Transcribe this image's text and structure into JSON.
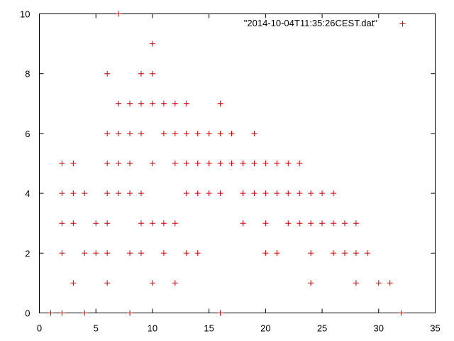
{
  "chart_data": {
    "type": "scatter",
    "title": "",
    "xlabel": "",
    "ylabel": "",
    "xlim": [
      0,
      35
    ],
    "ylim": [
      0,
      10
    ],
    "xticks": [
      "0",
      "5",
      "10",
      "15",
      "20",
      "25",
      "30",
      "35"
    ],
    "yticks": [
      "0",
      "2",
      "4",
      "6",
      "8",
      "10"
    ],
    "grid": false,
    "legend_position": "top-right",
    "marker": "plus",
    "colors": {
      "points": "#cc0000",
      "axes": "#000000",
      "background": "#ffffff"
    },
    "series": [
      {
        "name": "\"2014-10-04T11:35:26CEST.dat\"",
        "points": [
          [
            1,
            0
          ],
          [
            2,
            0
          ],
          [
            4,
            0
          ],
          [
            8,
            0
          ],
          [
            16,
            0
          ],
          [
            32,
            0
          ],
          [
            3,
            1
          ],
          [
            6,
            1
          ],
          [
            10,
            1
          ],
          [
            12,
            1
          ],
          [
            24,
            1
          ],
          [
            28,
            1
          ],
          [
            30,
            1
          ],
          [
            31,
            1
          ],
          [
            2,
            2
          ],
          [
            4,
            2
          ],
          [
            5,
            2
          ],
          [
            6,
            2
          ],
          [
            8,
            2
          ],
          [
            9,
            2
          ],
          [
            11,
            2
          ],
          [
            13,
            2
          ],
          [
            14,
            2
          ],
          [
            20,
            2
          ],
          [
            21,
            2
          ],
          [
            24,
            2
          ],
          [
            26,
            2
          ],
          [
            27,
            2
          ],
          [
            28,
            2
          ],
          [
            29,
            2
          ],
          [
            2,
            3
          ],
          [
            3,
            3
          ],
          [
            5,
            3
          ],
          [
            6,
            3
          ],
          [
            9,
            3
          ],
          [
            10,
            3
          ],
          [
            11,
            3
          ],
          [
            12,
            3
          ],
          [
            18,
            3
          ],
          [
            20,
            3
          ],
          [
            22,
            3
          ],
          [
            23,
            3
          ],
          [
            24,
            3
          ],
          [
            25,
            3
          ],
          [
            26,
            3
          ],
          [
            27,
            3
          ],
          [
            28,
            3
          ],
          [
            2,
            4
          ],
          [
            3,
            4
          ],
          [
            4,
            4
          ],
          [
            6,
            4
          ],
          [
            7,
            4
          ],
          [
            8,
            4
          ],
          [
            9,
            4
          ],
          [
            13,
            4
          ],
          [
            14,
            4
          ],
          [
            15,
            4
          ],
          [
            16,
            4
          ],
          [
            18,
            4
          ],
          [
            19,
            4
          ],
          [
            20,
            4
          ],
          [
            21,
            4
          ],
          [
            22,
            4
          ],
          [
            23,
            4
          ],
          [
            24,
            4
          ],
          [
            25,
            4
          ],
          [
            26,
            4
          ],
          [
            2,
            5
          ],
          [
            3,
            5
          ],
          [
            6,
            5
          ],
          [
            7,
            5
          ],
          [
            8,
            5
          ],
          [
            10,
            5
          ],
          [
            12,
            5
          ],
          [
            13,
            5
          ],
          [
            14,
            5
          ],
          [
            15,
            5
          ],
          [
            16,
            5
          ],
          [
            17,
            5
          ],
          [
            18,
            5
          ],
          [
            19,
            5
          ],
          [
            20,
            5
          ],
          [
            21,
            5
          ],
          [
            22,
            5
          ],
          [
            23,
            5
          ],
          [
            6,
            6
          ],
          [
            7,
            6
          ],
          [
            8,
            6
          ],
          [
            9,
            6
          ],
          [
            11,
            6
          ],
          [
            12,
            6
          ],
          [
            13,
            6
          ],
          [
            14,
            6
          ],
          [
            15,
            6
          ],
          [
            16,
            6
          ],
          [
            17,
            6
          ],
          [
            19,
            6
          ],
          [
            7,
            7
          ],
          [
            8,
            7
          ],
          [
            9,
            7
          ],
          [
            10,
            7
          ],
          [
            11,
            7
          ],
          [
            12,
            7
          ],
          [
            13,
            7
          ],
          [
            16,
            7
          ],
          [
            6,
            8
          ],
          [
            9,
            8
          ],
          [
            10,
            8
          ],
          [
            10,
            9
          ],
          [
            7,
            10
          ]
        ]
      }
    ]
  }
}
